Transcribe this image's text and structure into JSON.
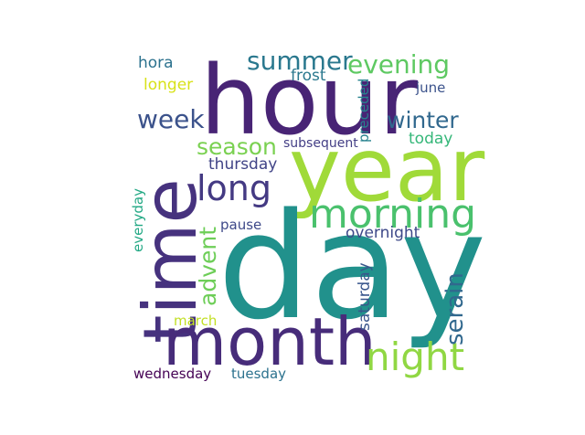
{
  "words": [
    {
      "key": "hour",
      "text": "hour",
      "color": "#482475"
    },
    {
      "key": "year",
      "text": "year",
      "color": "#a0da39"
    },
    {
      "key": "day",
      "text": "day",
      "color": "#21918c"
    },
    {
      "key": "time",
      "text": "time",
      "color": "#46327e"
    },
    {
      "key": "month",
      "text": "month",
      "color": "#472c7a"
    },
    {
      "key": "morning",
      "text": "morning",
      "color": "#4ac16d"
    },
    {
      "key": "night",
      "text": "night",
      "color": "#90d743"
    },
    {
      "key": "summer",
      "text": "summer",
      "color": "#2a788e"
    },
    {
      "key": "evening",
      "text": "evening",
      "color": "#5ec962"
    },
    {
      "key": "week",
      "text": "week",
      "color": "#3b528b"
    },
    {
      "key": "long",
      "text": "long",
      "color": "#443a83"
    },
    {
      "key": "season",
      "text": "season",
      "color": "#7ad151"
    },
    {
      "key": "winter",
      "text": "winter",
      "color": "#31688e"
    },
    {
      "key": "serain",
      "text": "serain",
      "color": "#31688e"
    },
    {
      "key": "advent",
      "text": "advent",
      "color": "#6ece58"
    },
    {
      "key": "hora",
      "text": "hora",
      "color": "#2c728e"
    },
    {
      "key": "longer",
      "text": "longer",
      "color": "#d8e219"
    },
    {
      "key": "frost",
      "text": "frost",
      "color": "#2a788e"
    },
    {
      "key": "june",
      "text": "june",
      "color": "#3b528b"
    },
    {
      "key": "preceded",
      "text": "preceded",
      "color": "#26828e"
    },
    {
      "key": "today",
      "text": "today",
      "color": "#35b779"
    },
    {
      "key": "subsequent",
      "text": "subsequent",
      "color": "#433e85"
    },
    {
      "key": "thursday",
      "text": "thursday",
      "color": "#414487"
    },
    {
      "key": "pause",
      "text": "pause",
      "color": "#3e4989"
    },
    {
      "key": "overnight",
      "text": "overnight",
      "color": "#3e4989"
    },
    {
      "key": "everyday",
      "text": "everyday",
      "color": "#22a884"
    },
    {
      "key": "saturday",
      "text": "saturday",
      "color": "#39568c"
    },
    {
      "key": "march",
      "text": "march",
      "color": "#c2df23"
    },
    {
      "key": "wednesday",
      "text": "wednesday",
      "color": "#440154"
    },
    {
      "key": "tuesday",
      "text": "tuesday",
      "color": "#2c728e"
    }
  ]
}
